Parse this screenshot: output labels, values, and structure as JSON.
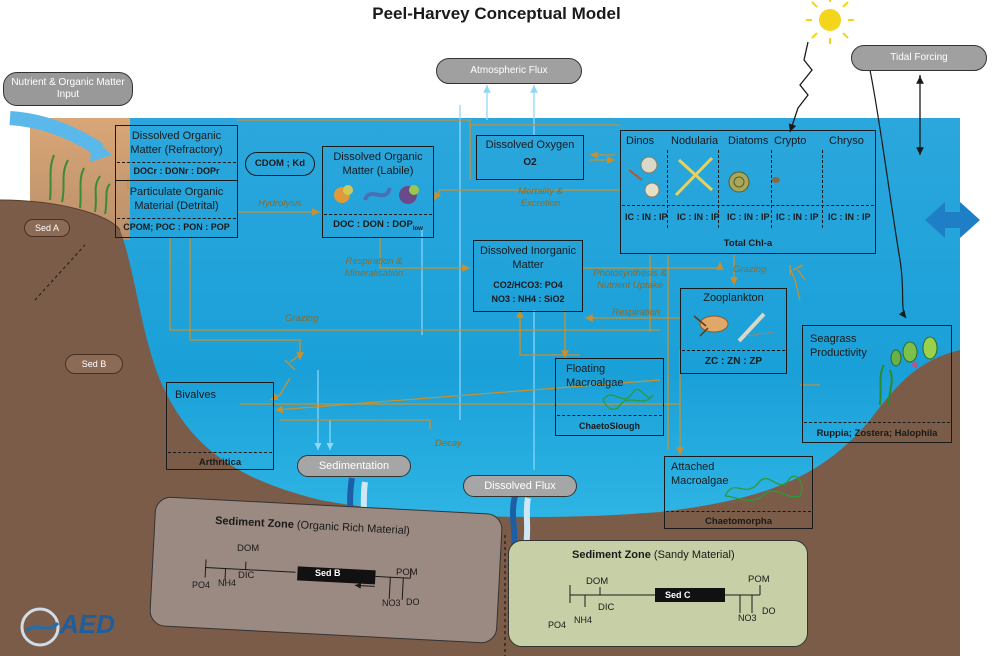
{
  "title": "Peel-Harvey Conceptual Model",
  "external": {
    "nutrient_input": "Nutrient & Organic Matter Input",
    "atmospheric_flux": "Atmospheric Flux",
    "tidal_forcing": "Tidal Forcing"
  },
  "sediment_labels": {
    "sed_a": "Sed A",
    "sed_b": "Sed B"
  },
  "doc_refractory": {
    "title": "Dissolved Organic Matter (Refractory)",
    "vars": "DOCr : DONr : DOPr"
  },
  "particulate": {
    "title": "Particulate Organic Material (Detrital)",
    "vars": "CPOM; POC : PON : POP"
  },
  "cdom": "CDOM ; Kd",
  "doc_labile": {
    "title": "Dissolved Organic Matter (Labile)",
    "vars": "DOC : DON : DOP",
    "vars_sub": "low"
  },
  "dissolved_oxygen": {
    "title": "Dissolved Oxygen",
    "vars": "O2"
  },
  "dim": {
    "title": "Dissolved Inorganic Matter",
    "vars1": "CO2/HCO3: PO4",
    "vars2": "NO3 : NH4 : SiO2"
  },
  "phyto": {
    "groups": [
      "Dinos",
      "Nodularia",
      "Diatoms",
      "Crypto",
      "Chryso"
    ],
    "ratios": [
      "IC : IN : IP",
      "IC : IN : IP",
      "IC : IN : IP",
      "IC : IN : IP",
      "IC : IN : IP"
    ],
    "total": "Total Chl-a"
  },
  "zooplankton": {
    "title": "Zooplankton",
    "vars": "ZC : ZN : ZP"
  },
  "floating": {
    "title": "Floating Macroalgae",
    "vars": "ChaetoSlough"
  },
  "bivalves": {
    "title": "Bivalves",
    "vars": "Arthritica"
  },
  "seagrass": {
    "title": "Seagrass Productivity",
    "vars": "Ruppia; Zostera; Halophila"
  },
  "attached": {
    "title": "Attached Macroalgae",
    "vars": "Chaetomorpha"
  },
  "sedimentation": "Sedimentation",
  "dissolved_flux": "Dissolved Flux",
  "processes": {
    "hydrolysis": "Hydrolysis",
    "mortality": "Mortality & Excretion",
    "respiration_min": "Respiration & Mineralisation",
    "grazing_left": "Grazing",
    "grazing_right": "Grazing",
    "photosynthesis": "Photosynthesis & Nutrient Uptake",
    "respiration": "Respiration",
    "decay": "Decay"
  },
  "sed_zone_organic": {
    "title": "Sediment Zone",
    "subtitle": "(Organic Rich Material)",
    "center": "Sed B",
    "dom": "DOM",
    "dic": "DIC",
    "pom": "POM",
    "po4": "PO4",
    "nh4": "NH4",
    "no3": "NO3",
    "do": "DO"
  },
  "sed_zone_sandy": {
    "title": "Sediment Zone",
    "subtitle": "(Sandy Material)",
    "center": "Sed C",
    "dom": "DOM",
    "dic": "DIC",
    "pom": "POM",
    "po4": "PO4",
    "nh4": "NH4",
    "no3": "NO3",
    "do": "DO"
  },
  "logo": "AED",
  "colors": {
    "water_top": "#3fb3e0",
    "water_bottom": "#1a9fd6",
    "sediment": "#7a5c48",
    "flow": "#c8902f",
    "flux": "#7fd3f5"
  }
}
